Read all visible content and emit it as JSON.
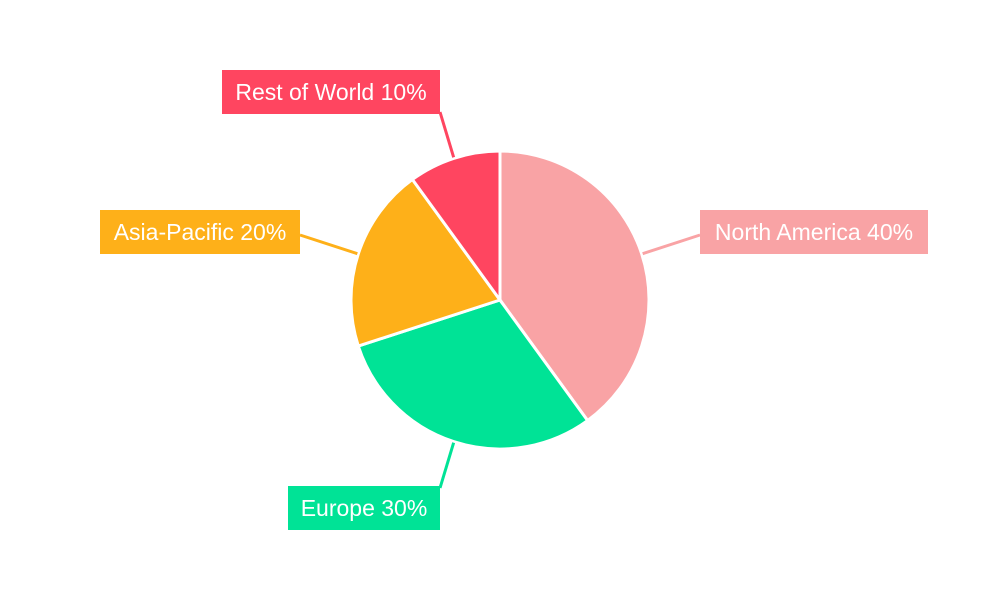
{
  "chart_data": {
    "type": "pie",
    "title": "",
    "categories": [
      "North America",
      "Europe",
      "Asia-Pacific",
      "Rest of World"
    ],
    "values": [
      40,
      30,
      20,
      10
    ],
    "labels": [
      "North America 40%",
      "Europe 30%",
      "Asia-Pacific 20%",
      "Rest of World 10%"
    ],
    "colors": [
      "#f9a3a5",
      "#00e396",
      "#feb019",
      "#ff4560"
    ],
    "start_angle": "top, clockwise",
    "legend": "none"
  }
}
